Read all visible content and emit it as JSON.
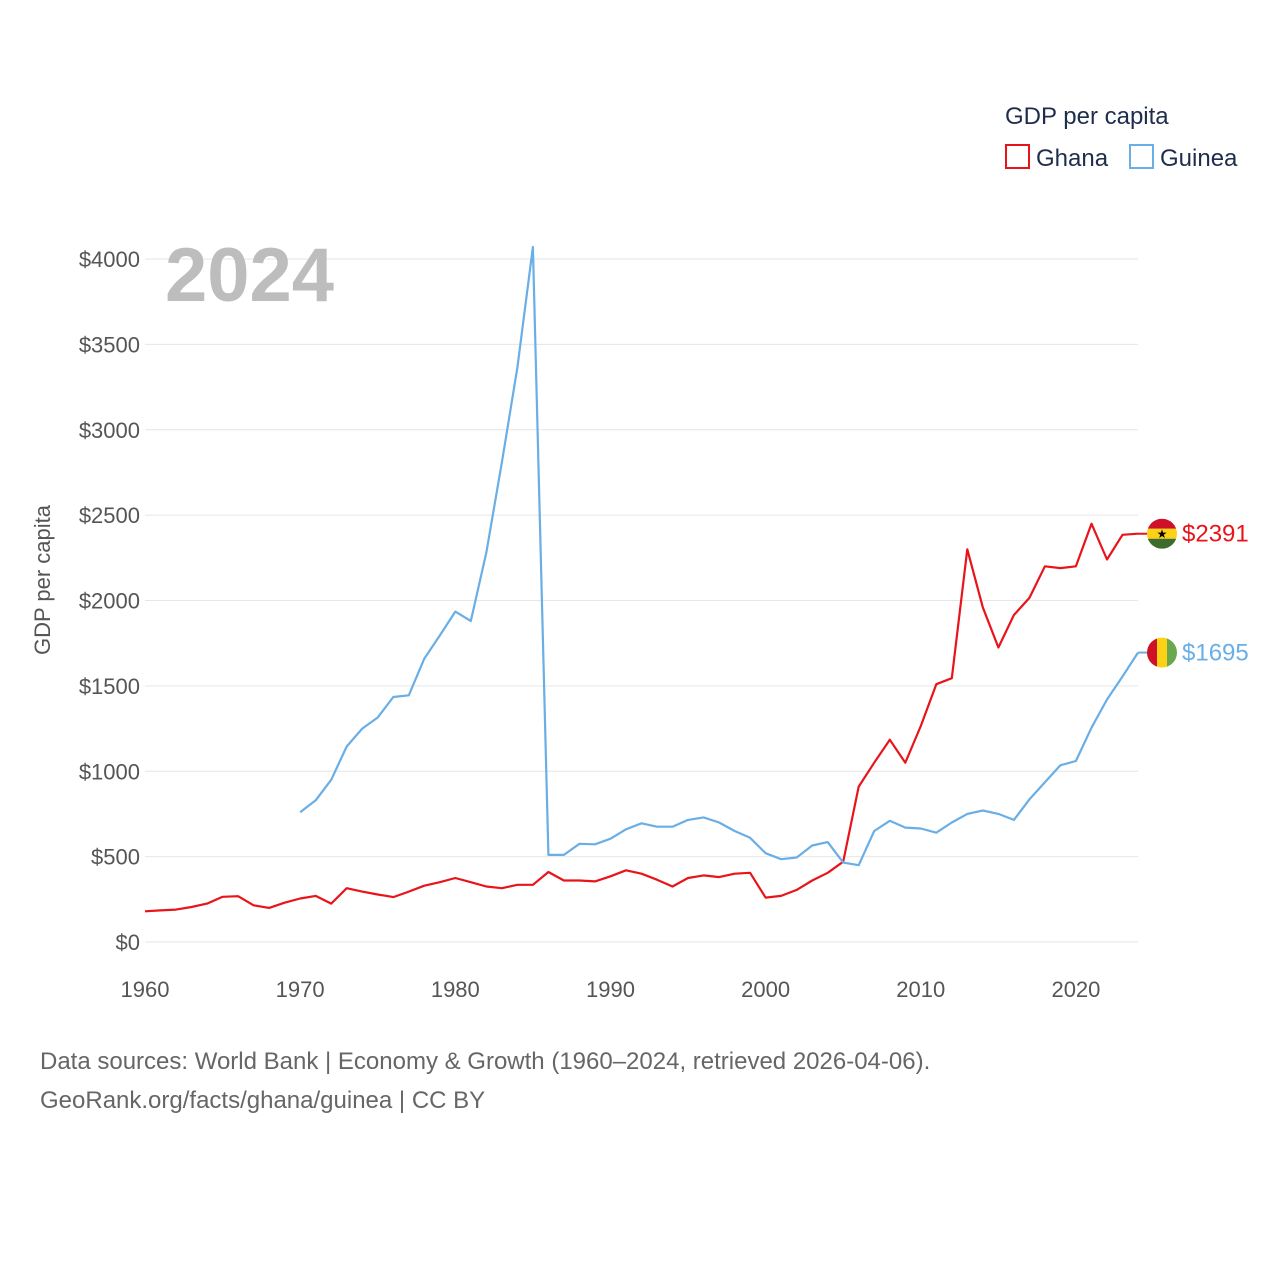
{
  "chart_data": {
    "type": "line",
    "title": "GDP per capita",
    "ylabel": "GDP per capita",
    "xlabel": "",
    "year_label": "2024",
    "xlim": [
      1960,
      2024
    ],
    "ylim": [
      0,
      4000
    ],
    "x_ticks": [
      "1960",
      "1970",
      "1980",
      "1990",
      "2000",
      "2010",
      "2020"
    ],
    "y_ticks": [
      "$0",
      "$500",
      "$1000",
      "$1500",
      "$2000",
      "$2500",
      "$3000",
      "$3500",
      "$4000"
    ],
    "grid": true,
    "legend_position": "top-right",
    "series": [
      {
        "name": "Ghana",
        "color": "#e8141a",
        "end_label": "$2391",
        "flag_icon": "ghana-flag-icon",
        "x": [
          1960,
          1961,
          1962,
          1963,
          1964,
          1965,
          1966,
          1967,
          1968,
          1969,
          1970,
          1971,
          1972,
          1973,
          1974,
          1975,
          1976,
          1977,
          1978,
          1979,
          1980,
          1981,
          1982,
          1983,
          1984,
          1985,
          1986,
          1987,
          1988,
          1989,
          1990,
          1991,
          1992,
          1993,
          1994,
          1995,
          1996,
          1997,
          1998,
          1999,
          2000,
          2001,
          2002,
          2003,
          2004,
          2005,
          2006,
          2007,
          2008,
          2009,
          2010,
          2011,
          2012,
          2013,
          2014,
          2015,
          2016,
          2017,
          2018,
          2019,
          2020,
          2021,
          2022,
          2023,
          2024
        ],
        "values": [
          180,
          185,
          190,
          205,
          225,
          265,
          268,
          215,
          200,
          230,
          255,
          270,
          225,
          315,
          295,
          278,
          263,
          295,
          330,
          350,
          375,
          350,
          325,
          315,
          335,
          335,
          410,
          360,
          360,
          355,
          385,
          420,
          400,
          365,
          325,
          375,
          390,
          380,
          400,
          405,
          260,
          270,
          305,
          360,
          405,
          470,
          910,
          1050,
          1185,
          1050,
          1265,
          1510,
          1545,
          2300,
          1960,
          1725,
          1915,
          2015,
          2200,
          2190,
          2200,
          2450,
          2240,
          2385,
          2391
        ]
      },
      {
        "name": "Guinea",
        "color": "#6aaee6",
        "end_label": "$1695",
        "flag_icon": "guinea-flag-icon",
        "x": [
          1970,
          1971,
          1972,
          1973,
          1974,
          1975,
          1976,
          1977,
          1978,
          1979,
          1980,
          1981,
          1982,
          1983,
          1984,
          1985,
          1986,
          1987,
          1988,
          1989,
          1990,
          1991,
          1992,
          1993,
          1994,
          1995,
          1996,
          1997,
          1998,
          1999,
          2000,
          2001,
          2002,
          2003,
          2004,
          2005,
          2006,
          2007,
          2008,
          2009,
          2010,
          2011,
          2012,
          2013,
          2014,
          2015,
          2016,
          2017,
          2018,
          2019,
          2020,
          2021,
          2022,
          2023,
          2024
        ],
        "values": [
          760,
          830,
          950,
          1145,
          1250,
          1315,
          1435,
          1445,
          1660,
          1795,
          1935,
          1880,
          2280,
          2810,
          3365,
          4070,
          510,
          510,
          575,
          572,
          605,
          660,
          695,
          675,
          675,
          715,
          730,
          700,
          650,
          610,
          520,
          485,
          495,
          565,
          585,
          465,
          450,
          650,
          710,
          670,
          665,
          640,
          700,
          750,
          770,
          750,
          715,
          835,
          935,
          1035,
          1060,
          1255,
          1420,
          1555,
          1695
        ]
      }
    ]
  },
  "source": {
    "line1": "Data sources: World Bank | Economy & Growth (1960–2024, retrieved 2026-04-06).",
    "line2": "GeoRank.org/facts/ghana/guinea | CC BY"
  }
}
